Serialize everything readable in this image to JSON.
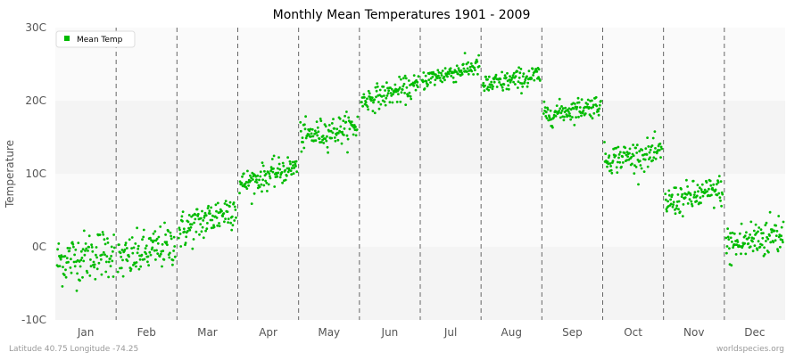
{
  "chart_data": {
    "type": "scatter",
    "title": "Monthly Mean Temperatures 1901 - 2009",
    "ylabel": "Temperature",
    "xlabel": "",
    "ylim": [
      -10,
      30
    ],
    "y_ticks": [
      {
        "value": -10,
        "label": "-10C"
      },
      {
        "value": 0,
        "label": "0C"
      },
      {
        "value": 10,
        "label": "10C"
      },
      {
        "value": 20,
        "label": "20C"
      },
      {
        "value": 30,
        "label": "30C"
      }
    ],
    "categories": [
      "Jan",
      "Feb",
      "Mar",
      "Apr",
      "May",
      "Jun",
      "Jul",
      "Aug",
      "Sep",
      "Oct",
      "Nov",
      "Dec"
    ],
    "year_range": [
      1901,
      2009
    ],
    "legend": {
      "position": "top-left",
      "entries": [
        "Mean Temp"
      ]
    },
    "grid": true,
    "series": [
      {
        "name": "Mean Temp",
        "color": "#00bb00",
        "monthly_profile": [
          {
            "month": "Jan",
            "start": -2.0,
            "end": -0.5,
            "spread": 2.3
          },
          {
            "month": "Feb",
            "start": -2.0,
            "end": 0.5,
            "spread": 2.0
          },
          {
            "month": "Mar",
            "start": 2.0,
            "end": 5.5,
            "spread": 1.8
          },
          {
            "month": "Apr",
            "start": 8.5,
            "end": 11.0,
            "spread": 1.2
          },
          {
            "month": "May",
            "start": 15.0,
            "end": 16.5,
            "spread": 1.3
          },
          {
            "month": "Jun",
            "start": 20.0,
            "end": 22.0,
            "spread": 1.1
          },
          {
            "month": "Jul",
            "start": 22.8,
            "end": 24.8,
            "spread": 0.9
          },
          {
            "month": "Aug",
            "start": 22.0,
            "end": 23.5,
            "spread": 1.0
          },
          {
            "month": "Sep",
            "start": 18.0,
            "end": 19.5,
            "spread": 1.0
          },
          {
            "month": "Oct",
            "start": 12.0,
            "end": 12.8,
            "spread": 1.3
          },
          {
            "month": "Nov",
            "start": 6.0,
            "end": 7.8,
            "spread": 1.4
          },
          {
            "month": "Dec",
            "start": 0.0,
            "end": 2.0,
            "spread": 2.0
          }
        ]
      }
    ]
  },
  "footer": {
    "location": "Latitude 40.75 Longitude -74.25",
    "credit": "worldspecies.org"
  }
}
